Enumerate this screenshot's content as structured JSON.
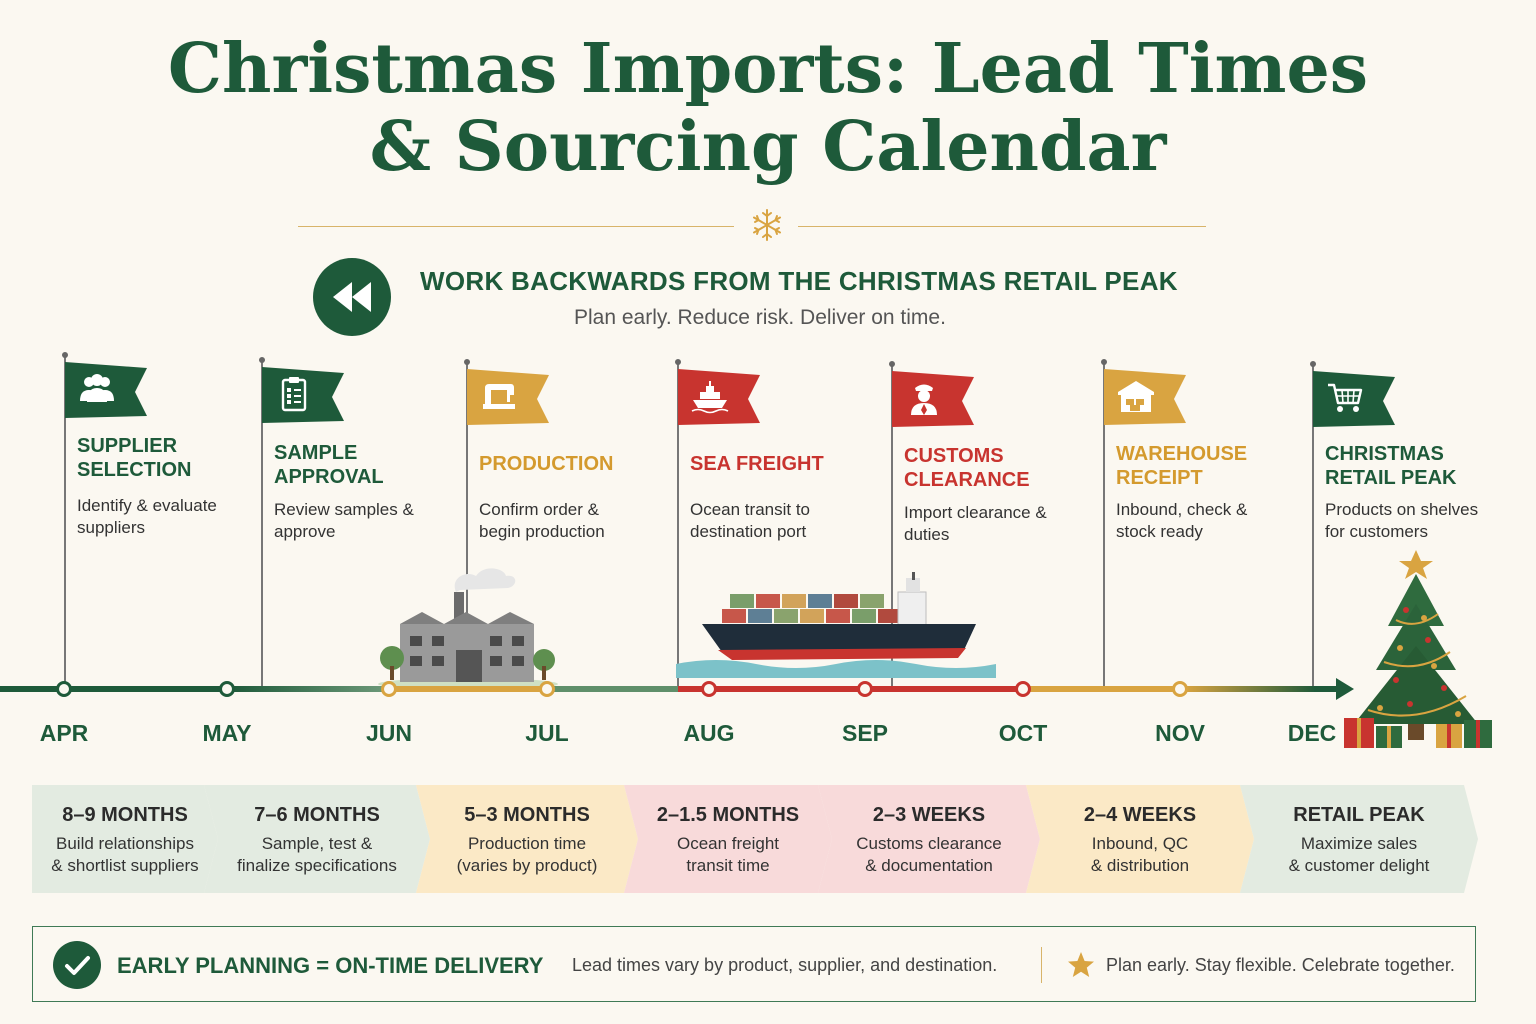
{
  "title": {
    "line1": "Christmas Imports: Lead Times",
    "line2": "& Sourcing Calendar"
  },
  "banner": {
    "icon": "rewind-icon",
    "headline": "WORK BACKWARDS FROM THE CHRISTMAS RETAIL PEAK",
    "subline": "Plan early. Reduce risk. Deliver on time."
  },
  "stages": [
    {
      "title1": "SUPPLIER",
      "title2": "SELECTION",
      "desc1": "Identify & evaluate",
      "desc2": "suppliers",
      "icon": "people-icon",
      "color": "#1e5a3a"
    },
    {
      "title1": "SAMPLE",
      "title2": "APPROVAL",
      "desc1": "Review samples &",
      "desc2": "approve",
      "icon": "clipboard-icon",
      "color": "#1e5a3a"
    },
    {
      "title1": "PRODUCTION",
      "title2": "",
      "desc1": "Confirm order &",
      "desc2": "begin production",
      "icon": "sewing-machine-icon",
      "color": "#d9a441"
    },
    {
      "title1": "SEA FREIGHT",
      "title2": "",
      "desc1": "Ocean transit to",
      "desc2": "destination port",
      "icon": "ship-icon",
      "color": "#c8342f"
    },
    {
      "title1": "CUSTOMS",
      "title2": "CLEARANCE",
      "desc1": "Import clearance &",
      "desc2": "duties",
      "icon": "officer-icon",
      "color": "#c8342f"
    },
    {
      "title1": "WAREHOUSE",
      "title2": "RECEIPT",
      "desc1": "Inbound, check &",
      "desc2": "stock ready",
      "icon": "warehouse-icon",
      "color": "#d9a441"
    },
    {
      "title1": "CHRISTMAS",
      "title2": "RETAIL PEAK",
      "desc1": "Products on shelves",
      "desc2": "for customers",
      "icon": "cart-icon",
      "color": "#1e5a3a"
    }
  ],
  "months": [
    "APR",
    "MAY",
    "JUN",
    "JUL",
    "AUG",
    "SEP",
    "OCT",
    "NOV",
    "DEC"
  ],
  "lead_times": [
    {
      "title": "8–9 MONTHS",
      "desc1": "Build relationships",
      "desc2": "& shortlist suppliers",
      "fill": "#e3ebe1"
    },
    {
      "title": "7–6 MONTHS",
      "desc1": "Sample, test &",
      "desc2": "finalize specifications",
      "fill": "#e3ebe1"
    },
    {
      "title": "5–3 MONTHS",
      "desc1": "Production time",
      "desc2": "(varies by product)",
      "fill": "#fbe9c6"
    },
    {
      "title": "2–1.5 MONTHS",
      "desc1": "Ocean freight",
      "desc2": "transit time",
      "fill": "#f8dada"
    },
    {
      "title": "2–3 WEEKS",
      "desc1": "Customs clearance",
      "desc2": "& documentation",
      "fill": "#f8dada"
    },
    {
      "title": "2–4 WEEKS",
      "desc1": "Inbound, QC",
      "desc2": "& distribution",
      "fill": "#fbe9c6"
    },
    {
      "title": "RETAIL PEAK",
      "desc1": "Maximize sales",
      "desc2": "& customer delight",
      "fill": "#e3ebe1"
    }
  ],
  "footer": {
    "headline": "EARLY PLANNING = ON-TIME DELIVERY",
    "note": "Lead times vary by product, supplier, and destination.",
    "tagline": "Plan early. Stay flexible. Celebrate together.",
    "icons": [
      "check-icon",
      "star-icon"
    ]
  },
  "illustrations": [
    "factory-illustration",
    "container-ship-illustration",
    "christmas-tree-illustration"
  ],
  "colors": {
    "green": "#1e5a3a",
    "gold": "#d9a441",
    "red": "#c8342f",
    "cream": "#fbf8f1"
  }
}
